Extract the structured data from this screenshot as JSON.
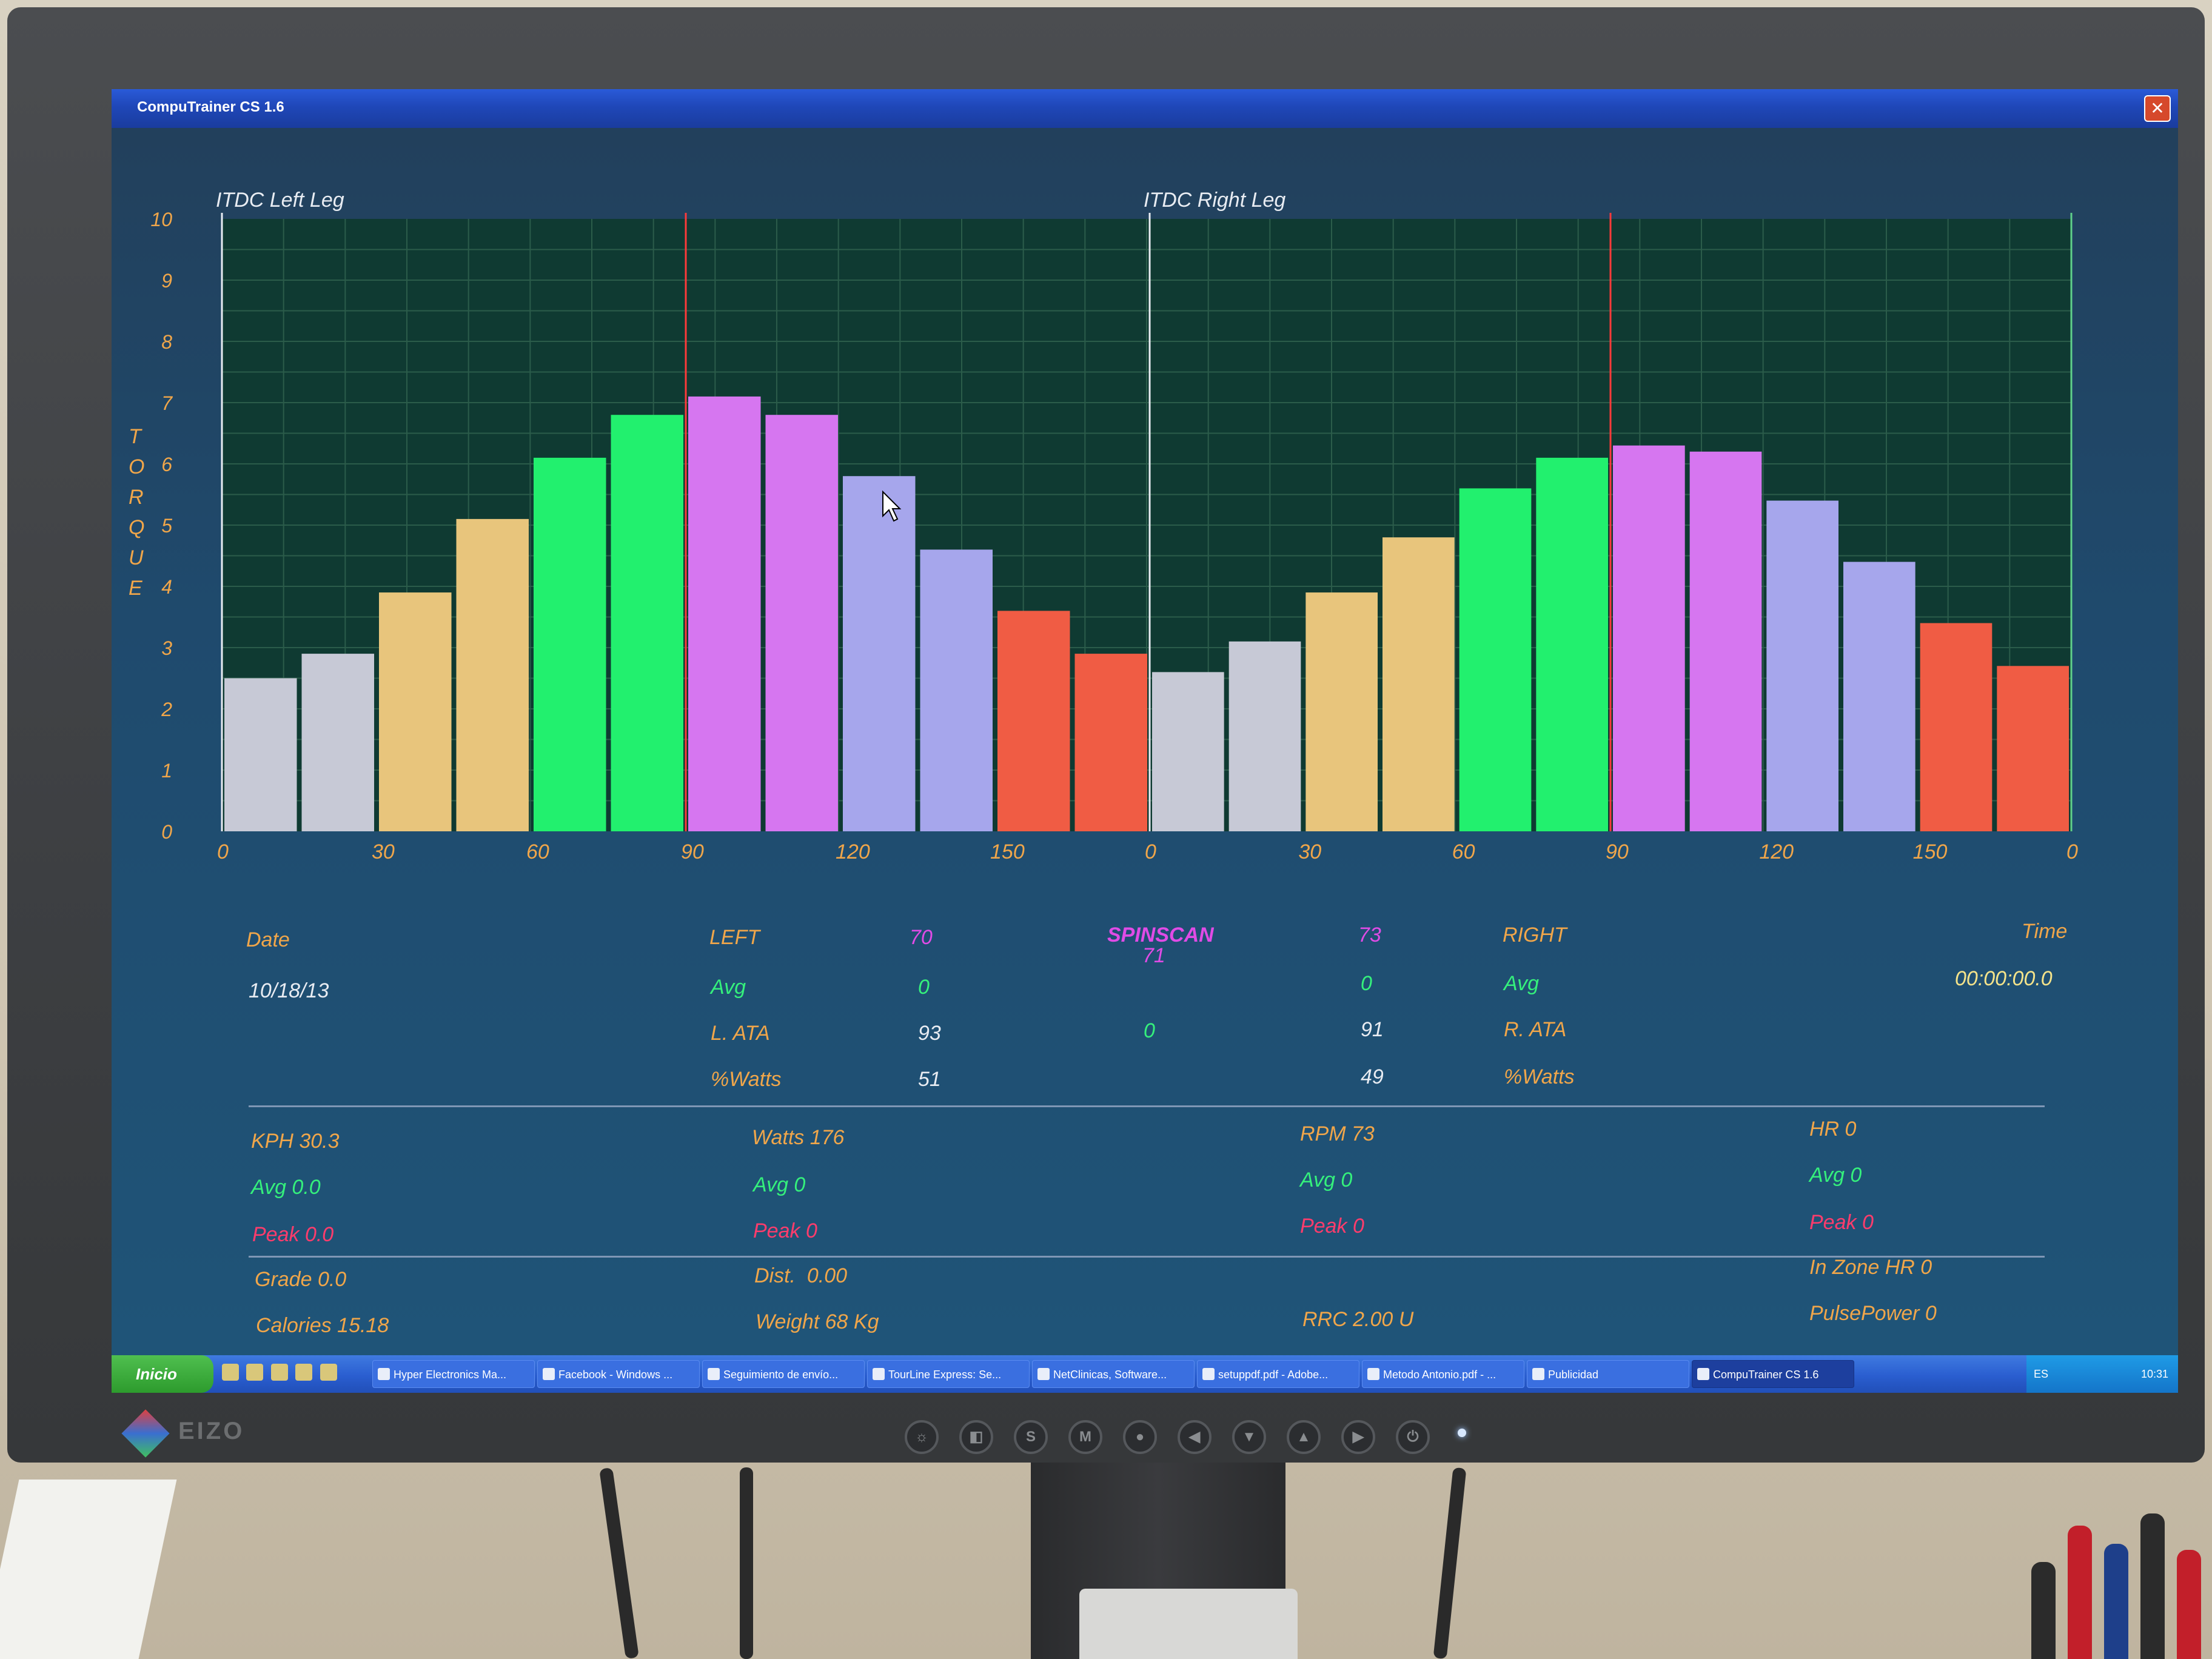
{
  "window": {
    "title": "CompuTrainer CS 1.6",
    "close_glyph": "✕"
  },
  "chart_labels": {
    "left_title": "ITDC Left Leg",
    "right_title": "ITDC Right Leg",
    "ylabel": "TORQUE"
  },
  "chart_data": [
    {
      "type": "bar",
      "title": "ITDC Left Leg",
      "ylabel": "TORQUE",
      "ylim": [
        0,
        10
      ],
      "yticks": [
        "0",
        "1",
        "2",
        "3",
        "4",
        "5",
        "6",
        "7",
        "8",
        "9",
        "10"
      ],
      "xticks": [
        "0",
        "30",
        "60",
        "90",
        "120",
        "150"
      ],
      "xlim": [
        0,
        180
      ],
      "marker_x": 90,
      "values": [
        2.5,
        2.9,
        3.9,
        5.1,
        6.1,
        6.8,
        7.1,
        6.8,
        5.8,
        4.6,
        3.6,
        2.9
      ],
      "colors": [
        "#c7c9d6",
        "#c7c9d6",
        "#e8c57c",
        "#e8c57c",
        "#22f06e",
        "#22f06e",
        "#d676f0",
        "#d676f0",
        "#a6a6ec",
        "#a6a6ec",
        "#f05c44",
        "#f05c44"
      ]
    },
    {
      "type": "bar",
      "title": "ITDC Right Leg",
      "ylabel": "TORQUE",
      "ylim": [
        0,
        10
      ],
      "xticks": [
        "0",
        "30",
        "60",
        "90",
        "120",
        "150",
        "0"
      ],
      "xlim": [
        0,
        180
      ],
      "marker_x": 90,
      "values": [
        2.6,
        3.1,
        3.9,
        4.8,
        5.6,
        6.1,
        6.3,
        6.2,
        5.4,
        4.4,
        3.4,
        2.7
      ],
      "colors": [
        "#c7c9d6",
        "#c7c9d6",
        "#e8c57c",
        "#e8c57c",
        "#22f06e",
        "#22f06e",
        "#d676f0",
        "#d676f0",
        "#a6a6ec",
        "#a6a6ec",
        "#f05c44",
        "#f05c44"
      ]
    }
  ],
  "stats": {
    "date_label": "Date",
    "date_value": "10/18/13",
    "left_label": "LEFT",
    "left_value": "70",
    "spinscan_label": "SPINSCAN",
    "spinscan_value": "71",
    "right_value": "73",
    "right_label": "RIGHT",
    "time_label": "Time",
    "time_value": "00:00:00.0",
    "avg_label_left": "Avg",
    "avg_left_value": "0",
    "avg_right_value": "0",
    "avg_label_right": "Avg",
    "lata_label": "L. ATA",
    "lata_value": "93",
    "center_value": "0",
    "rata_value": "91",
    "rata_label": "R. ATA",
    "watts_pct_label_left": "%Watts",
    "watts_pct_left": "51",
    "watts_pct_right": "49",
    "watts_pct_label_right": "%Watts",
    "kph": "KPH 30.3",
    "kph_avg": "Avg 0.0",
    "kph_peak": "Peak 0.0",
    "watts": "Watts 176",
    "watts_avg": "Avg 0",
    "watts_peak": "Peak 0",
    "rpm": "RPM 73",
    "rpm_avg": "Avg 0",
    "rpm_peak": "Peak 0",
    "hr": "HR 0",
    "hr_avg": "Avg 0",
    "hr_peak": "Peak 0",
    "grade": "Grade 0.0",
    "dist": "Dist.  0.00",
    "in_zone_hr": "In Zone HR 0",
    "calories": "Calories 15.18",
    "weight": "Weight 68 Kg",
    "rrc": "RRC 2.00 U",
    "pulsepower": "PulsePower 0"
  },
  "taskbar": {
    "start": "Inicio",
    "tasks": [
      "Hyper Electronics Ma...",
      "Facebook - Windows ...",
      "Seguimiento de envío...",
      "TourLine Express: Se...",
      "NetClinicas, Software...",
      "setuppdf.pdf - Adobe...",
      "Metodo Antonio.pdf - ...",
      "Publicidad",
      "CompuTrainer CS 1.6"
    ],
    "lang": "ES",
    "clock": "10:31"
  },
  "monitor": {
    "brand": "EIZO"
  }
}
